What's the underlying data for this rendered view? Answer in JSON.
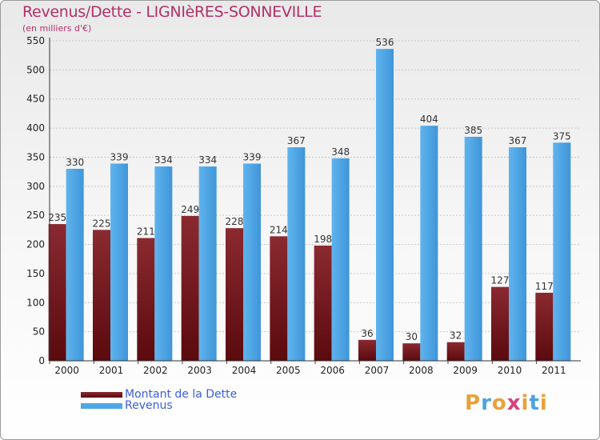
{
  "title": "Revenus/Dette - LIGNIèRES-SONNEVILLE",
  "subtitle": "(en milliers d'€)",
  "logo": {
    "text": "Proxiti",
    "colors": [
      "#e8a13a",
      "#4ca3dd",
      "#e8a13a",
      "#d9407a",
      "#e8a13a",
      "#4ca3dd",
      "#e8a13a"
    ]
  },
  "colors": {
    "dette": "#7a1f24",
    "revenus": "#4ea6e6",
    "title": "#b0306a",
    "legend_text": "#3a5fd8"
  },
  "chart_data": {
    "type": "bar",
    "title": "Revenus/Dette - LIGNIèRES-SONNEVILLE",
    "ylabel": "(en milliers d'€)",
    "xlabel": "",
    "categories": [
      "2000",
      "2001",
      "2002",
      "2003",
      "2004",
      "2005",
      "2006",
      "2007",
      "2008",
      "2009",
      "2010",
      "2011"
    ],
    "series": [
      {
        "name": "Montant de la Dette",
        "values": [
          235,
          225,
          211,
          249,
          228,
          214,
          198,
          36,
          30,
          32,
          127,
          117
        ]
      },
      {
        "name": "Revenus",
        "values": [
          330,
          339,
          334,
          334,
          339,
          367,
          348,
          536,
          404,
          385,
          367,
          375
        ]
      }
    ],
    "ylim": [
      0,
      550
    ],
    "yticks": [
      0,
      50,
      100,
      150,
      200,
      250,
      300,
      350,
      400,
      450,
      500,
      550
    ],
    "grid": true,
    "legend": "bottom-left"
  }
}
